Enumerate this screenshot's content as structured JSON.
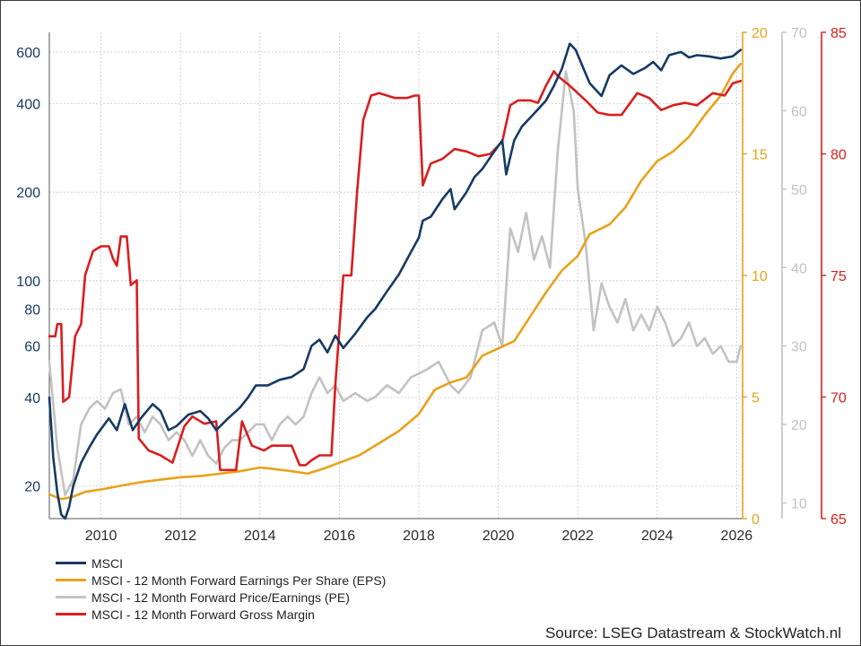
{
  "chart_data": {
    "type": "line",
    "xlim": [
      2008.7,
      2026.15
    ],
    "x_ticks": [
      "2010",
      "2012",
      "2014",
      "2016",
      "2018",
      "2020",
      "2022",
      "2024",
      "2026"
    ],
    "axes": [
      {
        "id": "msci",
        "scale": "log",
        "range": [
          15.5,
          700
        ],
        "ticks": [
          "20",
          "40",
          "60",
          "80",
          "100",
          "200",
          "400",
          "600"
        ],
        "color": "#163a63"
      },
      {
        "id": "eps",
        "scale": "linear",
        "range": [
          0,
          20
        ],
        "ticks": [
          "0",
          "5",
          "10",
          "15",
          "20"
        ],
        "color": "#e8a21c"
      },
      {
        "id": "pe",
        "scale": "linear",
        "range": [
          8,
          70
        ],
        "ticks": [
          "10",
          "20",
          "30",
          "40",
          "50",
          "60",
          "70"
        ],
        "color": "#c2c2c2"
      },
      {
        "id": "gm",
        "scale": "linear",
        "range": [
          65,
          85
        ],
        "ticks": [
          "65",
          "70",
          "75",
          "80",
          "85"
        ],
        "color": "#d71f1f"
      }
    ],
    "grid": true,
    "legend_position": "bottom-left",
    "series": [
      {
        "name": "MSCI",
        "axis": "msci",
        "color": "#163a63",
        "points": [
          [
            2008.7,
            40
          ],
          [
            2008.8,
            25
          ],
          [
            2008.9,
            19
          ],
          [
            2009.0,
            16
          ],
          [
            2009.1,
            15.5
          ],
          [
            2009.2,
            17
          ],
          [
            2009.3,
            20
          ],
          [
            2009.5,
            24
          ],
          [
            2009.7,
            27
          ],
          [
            2009.9,
            30
          ],
          [
            2010.2,
            34
          ],
          [
            2010.4,
            31
          ],
          [
            2010.6,
            38
          ],
          [
            2010.8,
            31
          ],
          [
            2011.0,
            34
          ],
          [
            2011.3,
            38
          ],
          [
            2011.5,
            36
          ],
          [
            2011.7,
            31
          ],
          [
            2011.9,
            32
          ],
          [
            2012.2,
            35
          ],
          [
            2012.5,
            36
          ],
          [
            2012.7,
            34
          ],
          [
            2012.9,
            31
          ],
          [
            2013.2,
            34
          ],
          [
            2013.5,
            37
          ],
          [
            2013.7,
            40
          ],
          [
            2013.9,
            44
          ],
          [
            2014.2,
            44
          ],
          [
            2014.5,
            46
          ],
          [
            2014.8,
            47
          ],
          [
            2015.1,
            50
          ],
          [
            2015.3,
            60
          ],
          [
            2015.5,
            63
          ],
          [
            2015.7,
            57
          ],
          [
            2015.9,
            65
          ],
          [
            2016.1,
            59
          ],
          [
            2016.4,
            66
          ],
          [
            2016.7,
            75
          ],
          [
            2016.9,
            80
          ],
          [
            2017.2,
            92
          ],
          [
            2017.5,
            105
          ],
          [
            2017.8,
            125
          ],
          [
            2018.0,
            140
          ],
          [
            2018.1,
            160
          ],
          [
            2018.3,
            165
          ],
          [
            2018.6,
            190
          ],
          [
            2018.8,
            205
          ],
          [
            2018.9,
            175
          ],
          [
            2019.2,
            200
          ],
          [
            2019.4,
            225
          ],
          [
            2019.6,
            240
          ],
          [
            2019.9,
            275
          ],
          [
            2020.1,
            300
          ],
          [
            2020.2,
            230
          ],
          [
            2020.4,
            300
          ],
          [
            2020.6,
            335
          ],
          [
            2020.9,
            370
          ],
          [
            2021.2,
            410
          ],
          [
            2021.4,
            460
          ],
          [
            2021.6,
            525
          ],
          [
            2021.8,
            640
          ],
          [
            2021.95,
            610
          ],
          [
            2022.1,
            545
          ],
          [
            2022.3,
            470
          ],
          [
            2022.6,
            425
          ],
          [
            2022.8,
            500
          ],
          [
            2023.1,
            540
          ],
          [
            2023.4,
            505
          ],
          [
            2023.7,
            530
          ],
          [
            2023.9,
            555
          ],
          [
            2024.1,
            520
          ],
          [
            2024.3,
            585
          ],
          [
            2024.6,
            600
          ],
          [
            2024.8,
            575
          ],
          [
            2025.0,
            585
          ],
          [
            2025.3,
            580
          ],
          [
            2025.6,
            570
          ],
          [
            2025.9,
            580
          ],
          [
            2026.1,
            610
          ]
        ]
      },
      {
        "name": "MSCI - 12 Month Forward Earnings Per Share (EPS)",
        "axis": "eps",
        "color": "#e8a21c",
        "points": [
          [
            2008.7,
            1.0
          ],
          [
            2009.0,
            0.8
          ],
          [
            2009.3,
            0.9
          ],
          [
            2009.6,
            1.1
          ],
          [
            2010.0,
            1.2
          ],
          [
            2010.5,
            1.35
          ],
          [
            2011.0,
            1.5
          ],
          [
            2011.5,
            1.6
          ],
          [
            2012.0,
            1.7
          ],
          [
            2012.5,
            1.75
          ],
          [
            2013.0,
            1.85
          ],
          [
            2013.5,
            1.95
          ],
          [
            2014.0,
            2.1
          ],
          [
            2014.3,
            2.05
          ],
          [
            2014.8,
            1.95
          ],
          [
            2015.2,
            1.85
          ],
          [
            2015.6,
            2.05
          ],
          [
            2016.0,
            2.3
          ],
          [
            2016.5,
            2.6
          ],
          [
            2017.0,
            3.1
          ],
          [
            2017.5,
            3.6
          ],
          [
            2018.0,
            4.3
          ],
          [
            2018.4,
            5.3
          ],
          [
            2018.8,
            5.6
          ],
          [
            2019.2,
            5.8
          ],
          [
            2019.6,
            6.7
          ],
          [
            2020.0,
            7.0
          ],
          [
            2020.4,
            7.3
          ],
          [
            2020.8,
            8.3
          ],
          [
            2021.2,
            9.3
          ],
          [
            2021.6,
            10.2
          ],
          [
            2022.0,
            10.8
          ],
          [
            2022.3,
            11.7
          ],
          [
            2022.8,
            12.1
          ],
          [
            2023.2,
            12.8
          ],
          [
            2023.6,
            13.9
          ],
          [
            2024.0,
            14.7
          ],
          [
            2024.4,
            15.1
          ],
          [
            2024.8,
            15.7
          ],
          [
            2025.2,
            16.6
          ],
          [
            2025.6,
            17.4
          ],
          [
            2025.9,
            18.3
          ],
          [
            2026.1,
            18.7
          ]
        ]
      },
      {
        "name": "MSCI - 12 Month Forward Price/Earnings (PE)",
        "axis": "pe",
        "color": "#c2c2c2",
        "points": [
          [
            2008.7,
            28
          ],
          [
            2008.9,
            17
          ],
          [
            2009.1,
            11
          ],
          [
            2009.3,
            13
          ],
          [
            2009.5,
            20
          ],
          [
            2009.7,
            22
          ],
          [
            2009.9,
            23
          ],
          [
            2010.1,
            22
          ],
          [
            2010.3,
            24
          ],
          [
            2010.5,
            24.5
          ],
          [
            2010.7,
            20
          ],
          [
            2010.9,
            21
          ],
          [
            2011.1,
            19
          ],
          [
            2011.3,
            21
          ],
          [
            2011.5,
            20
          ],
          [
            2011.7,
            18
          ],
          [
            2011.9,
            19
          ],
          [
            2012.1,
            18
          ],
          [
            2012.3,
            16
          ],
          [
            2012.5,
            18
          ],
          [
            2012.7,
            16
          ],
          [
            2012.9,
            15
          ],
          [
            2013.1,
            17
          ],
          [
            2013.3,
            18
          ],
          [
            2013.5,
            18
          ],
          [
            2013.7,
            19
          ],
          [
            2013.9,
            20
          ],
          [
            2014.1,
            20
          ],
          [
            2014.3,
            18
          ],
          [
            2014.5,
            20
          ],
          [
            2014.7,
            21
          ],
          [
            2014.9,
            20
          ],
          [
            2015.1,
            21
          ],
          [
            2015.3,
            24
          ],
          [
            2015.5,
            26
          ],
          [
            2015.7,
            24
          ],
          [
            2015.9,
            25
          ],
          [
            2016.1,
            23
          ],
          [
            2016.4,
            24
          ],
          [
            2016.7,
            23
          ],
          [
            2016.9,
            23.5
          ],
          [
            2017.2,
            25
          ],
          [
            2017.5,
            24
          ],
          [
            2017.8,
            26
          ],
          [
            2018.0,
            26.5
          ],
          [
            2018.2,
            27
          ],
          [
            2018.5,
            28
          ],
          [
            2018.8,
            25
          ],
          [
            2019.0,
            24
          ],
          [
            2019.3,
            26
          ],
          [
            2019.6,
            32
          ],
          [
            2019.9,
            33
          ],
          [
            2020.1,
            30
          ],
          [
            2020.3,
            45
          ],
          [
            2020.5,
            42
          ],
          [
            2020.7,
            47
          ],
          [
            2020.9,
            41
          ],
          [
            2021.1,
            44
          ],
          [
            2021.3,
            40
          ],
          [
            2021.5,
            55
          ],
          [
            2021.7,
            65
          ],
          [
            2021.9,
            60
          ],
          [
            2022.0,
            50
          ],
          [
            2022.2,
            43
          ],
          [
            2022.4,
            32
          ],
          [
            2022.6,
            38
          ],
          [
            2022.8,
            35
          ],
          [
            2023.0,
            33
          ],
          [
            2023.2,
            36
          ],
          [
            2023.4,
            32
          ],
          [
            2023.6,
            34
          ],
          [
            2023.8,
            32
          ],
          [
            2024.0,
            35
          ],
          [
            2024.2,
            33
          ],
          [
            2024.4,
            30
          ],
          [
            2024.6,
            31
          ],
          [
            2024.8,
            33
          ],
          [
            2025.0,
            30
          ],
          [
            2025.2,
            31
          ],
          [
            2025.4,
            29
          ],
          [
            2025.6,
            30
          ],
          [
            2025.8,
            28
          ],
          [
            2026.0,
            28
          ],
          [
            2026.1,
            30
          ]
        ]
      },
      {
        "name": "MSCI - 12 Month Forward Gross Margin",
        "axis": "gm",
        "color": "#d71f1f",
        "points": [
          [
            2008.7,
            72.5
          ],
          [
            2008.85,
            72.5
          ],
          [
            2008.9,
            73
          ],
          [
            2009.0,
            73
          ],
          [
            2009.05,
            69.8
          ],
          [
            2009.2,
            70
          ],
          [
            2009.35,
            72.5
          ],
          [
            2009.5,
            73
          ],
          [
            2009.6,
            75
          ],
          [
            2009.8,
            76
          ],
          [
            2010.0,
            76.2
          ],
          [
            2010.2,
            76.2
          ],
          [
            2010.3,
            75.7
          ],
          [
            2010.4,
            75.4
          ],
          [
            2010.5,
            76.6
          ],
          [
            2010.65,
            76.6
          ],
          [
            2010.75,
            74.6
          ],
          [
            2010.9,
            74.8
          ],
          [
            2010.95,
            68.3
          ],
          [
            2011.2,
            67.8
          ],
          [
            2011.5,
            67.6
          ],
          [
            2011.8,
            67.3
          ],
          [
            2012.1,
            68.8
          ],
          [
            2012.3,
            69.2
          ],
          [
            2012.6,
            68.9
          ],
          [
            2012.9,
            69
          ],
          [
            2013.0,
            67
          ],
          [
            2013.1,
            67
          ],
          [
            2013.4,
            67
          ],
          [
            2013.55,
            69
          ],
          [
            2013.8,
            68
          ],
          [
            2014.1,
            67.8
          ],
          [
            2014.3,
            68
          ],
          [
            2014.6,
            68
          ],
          [
            2014.8,
            68
          ],
          [
            2015.0,
            67.2
          ],
          [
            2015.15,
            67.2
          ],
          [
            2015.3,
            67.4
          ],
          [
            2015.5,
            67.6
          ],
          [
            2015.8,
            67.6
          ],
          [
            2015.9,
            70.5
          ],
          [
            2016.1,
            75
          ],
          [
            2016.3,
            75
          ],
          [
            2016.45,
            78.5
          ],
          [
            2016.6,
            81.4
          ],
          [
            2016.8,
            82.4
          ],
          [
            2017.0,
            82.5
          ],
          [
            2017.4,
            82.3
          ],
          [
            2017.7,
            82.3
          ],
          [
            2017.9,
            82.4
          ],
          [
            2018.0,
            82.4
          ],
          [
            2018.1,
            78.7
          ],
          [
            2018.3,
            79.6
          ],
          [
            2018.6,
            79.8
          ],
          [
            2018.9,
            80.2
          ],
          [
            2019.2,
            80.1
          ],
          [
            2019.5,
            79.9
          ],
          [
            2019.8,
            80
          ],
          [
            2020.1,
            80.5
          ],
          [
            2020.3,
            82
          ],
          [
            2020.5,
            82.2
          ],
          [
            2020.8,
            82.2
          ],
          [
            2021.0,
            82.1
          ],
          [
            2021.2,
            82.8
          ],
          [
            2021.4,
            83.4
          ],
          [
            2021.5,
            83.2
          ],
          [
            2021.8,
            82.8
          ],
          [
            2022.2,
            82.2
          ],
          [
            2022.5,
            81.7
          ],
          [
            2022.8,
            81.6
          ],
          [
            2023.1,
            81.6
          ],
          [
            2023.5,
            82.5
          ],
          [
            2023.8,
            82.3
          ],
          [
            2024.1,
            81.8
          ],
          [
            2024.4,
            82
          ],
          [
            2024.7,
            82.1
          ],
          [
            2025.0,
            82
          ],
          [
            2025.4,
            82.5
          ],
          [
            2025.7,
            82.4
          ],
          [
            2025.9,
            82.9
          ],
          [
            2026.1,
            83
          ]
        ]
      }
    ]
  },
  "legend": [
    {
      "label": "MSCI",
      "color": "#163a63"
    },
    {
      "label": "MSCI - 12 Month Forward Earnings Per Share (EPS)",
      "color": "#e8a21c"
    },
    {
      "label": "MSCI - 12 Month Forward Price/Earnings (PE)",
      "color": "#c2c2c2"
    },
    {
      "label": "MSCI - 12 Month Forward Gross Margin",
      "color": "#d71f1f"
    }
  ],
  "source": "Source: LSEG Datastream & StockWatch.nl"
}
